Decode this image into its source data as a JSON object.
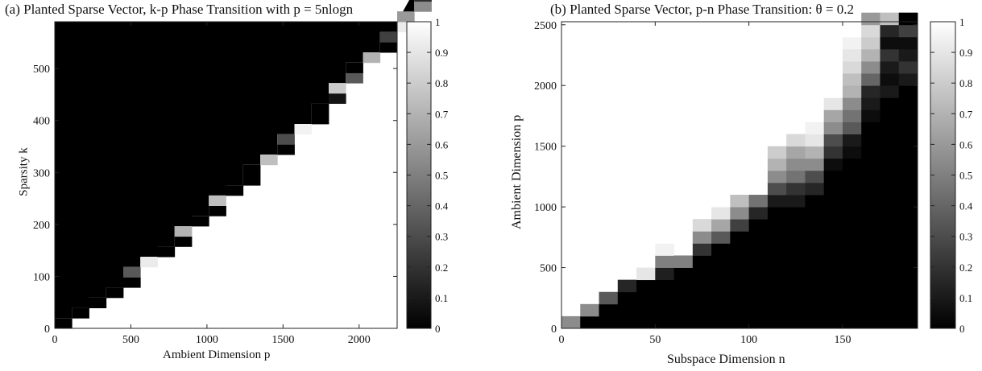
{
  "chart_data": [
    {
      "type": "heatmap",
      "title": "(a) Planted Sparse Vector, k-p Phase Transition with  p = 5nlogn",
      "xlabel": "Ambient Dimension p",
      "ylabel": "Sparsity k",
      "xlim": [
        0,
        2250
      ],
      "ylim": [
        0,
        590
      ],
      "xticks": [
        0,
        500,
        1000,
        1500,
        2000
      ],
      "yticks": [
        0,
        100,
        200,
        300,
        400,
        500
      ],
      "x_step": 112.5,
      "y_step": 19.666,
      "colorbar_ticks": [
        0,
        0.1,
        0.2,
        0.3,
        0.4,
        0.5,
        0.6,
        0.7,
        0.8,
        0.9,
        1
      ],
      "colormap": "gray",
      "boundary": [
        {
          "col": 0,
          "row": 0,
          "value": 0.0
        },
        {
          "col": 1,
          "row": 1,
          "value": 0.0
        },
        {
          "col": 2,
          "row": 2,
          "value": 0.0
        },
        {
          "col": 3,
          "row": 3,
          "value": 0.0
        },
        {
          "col": 4,
          "row": 4,
          "value": 0.0
        },
        {
          "col": 4,
          "row": 5,
          "value": 0.35
        },
        {
          "col": 5,
          "row": 6,
          "value": 0.92
        },
        {
          "col": 6,
          "row": 7,
          "value": 0.0
        },
        {
          "col": 7,
          "row": 8,
          "value": 0.0
        },
        {
          "col": 7,
          "row": 9,
          "value": 0.7
        },
        {
          "col": 8,
          "row": 10,
          "value": 0.0
        },
        {
          "col": 9,
          "row": 11,
          "value": 0.0
        },
        {
          "col": 9,
          "row": 12,
          "value": 0.75
        },
        {
          "col": 10,
          "row": 13,
          "value": 0.0
        },
        {
          "col": 11,
          "row": 14,
          "value": 0.0
        },
        {
          "col": 11,
          "row": 15,
          "value": 0.0
        },
        {
          "col": 12,
          "row": 16,
          "value": 0.75
        },
        {
          "col": 13,
          "row": 17,
          "value": 0.0
        },
        {
          "col": 13,
          "row": 18,
          "value": 0.3
        },
        {
          "col": 14,
          "row": 19,
          "value": 0.95
        },
        {
          "col": 15,
          "row": 20,
          "value": 0.0
        },
        {
          "col": 15,
          "row": 21,
          "value": 0.0
        },
        {
          "col": 16,
          "row": 22,
          "value": 0.08
        },
        {
          "col": 16,
          "row": 23,
          "value": 0.8
        },
        {
          "col": 17,
          "row": 24,
          "value": 0.35
        },
        {
          "col": 17,
          "row": 25,
          "value": 0.0
        },
        {
          "col": 18,
          "row": 26,
          "value": 0.7
        },
        {
          "col": 19,
          "row": 27,
          "value": 0.0
        },
        {
          "col": 19,
          "row": 28,
          "value": 0.25
        },
        {
          "col": 20,
          "row": 29,
          "value": 0.92
        },
        {
          "col": 20,
          "row": 30,
          "value": 0.6
        },
        {
          "col": 21,
          "row": 31,
          "value": 0.55
        },
        {
          "col": 21,
          "row": 32,
          "value": 0.18
        },
        {
          "col": 21,
          "row": 33,
          "value": 0.0
        },
        {
          "col": 22,
          "row": 33,
          "value": 0.85
        },
        {
          "col": 22,
          "row": 34,
          "value": 0.15
        },
        {
          "col": 22,
          "row": 35,
          "value": 0.4
        }
      ]
    },
    {
      "type": "heatmap",
      "title": "(b) Planted Sparse Vector, p-n Phase Transition: θ = 0.2",
      "xlabel": "Subspace Dimension n",
      "ylabel": "Ambient Dimension p",
      "xlim": [
        0,
        190
      ],
      "ylim": [
        0,
        2525
      ],
      "xticks": [
        0,
        50,
        100,
        150
      ],
      "yticks": [
        0,
        500,
        1000,
        1500,
        2000,
        2500
      ],
      "x_step": 10,
      "y_step": 100,
      "colorbar_ticks": [
        0,
        0.1,
        0.2,
        0.3,
        0.4,
        0.5,
        0.6,
        0.7,
        0.8,
        0.9,
        1
      ],
      "colormap": "gray",
      "columns": [
        {
          "col": 0,
          "start": 0,
          "end": 0,
          "values": [
            0.55
          ]
        },
        {
          "col": 1,
          "start": 1,
          "end": 1,
          "values": [
            0.55
          ]
        },
        {
          "col": 2,
          "start": 2,
          "end": 2,
          "values": [
            0.35
          ]
        },
        {
          "col": 3,
          "start": 3,
          "end": 3,
          "values": [
            0.15
          ]
        },
        {
          "col": 4,
          "start": 4,
          "end": 4,
          "values": [
            0.9
          ]
        },
        {
          "col": 5,
          "start": 4,
          "end": 7,
          "values": [
            0.12,
            0.5,
            0.95,
            1
          ]
        },
        {
          "col": 6,
          "start": 5,
          "end": 5,
          "values": [
            0.5
          ]
        },
        {
          "col": 7,
          "start": 6,
          "end": 8,
          "values": [
            0.2,
            0.55,
            0.85
          ]
        },
        {
          "col": 8,
          "start": 7,
          "end": 10,
          "values": [
            0.35,
            0.65,
            0.9,
            1
          ]
        },
        {
          "col": 9,
          "start": 8,
          "end": 10,
          "values": [
            0.25,
            0.55,
            0.75
          ]
        },
        {
          "col": 10,
          "start": 9,
          "end": 10,
          "values": [
            0.15,
            0.45
          ]
        },
        {
          "col": 11,
          "start": 10,
          "end": 14,
          "values": [
            0.1,
            0.3,
            0.55,
            0.7,
            0.8
          ]
        },
        {
          "col": 12,
          "start": 10,
          "end": 15,
          "values": [
            0.1,
            0.2,
            0.45,
            0.55,
            0.65,
            0.85
          ]
        },
        {
          "col": 13,
          "start": 11,
          "end": 17,
          "values": [
            0.15,
            0.3,
            0.55,
            0.7,
            0.9,
            0.95,
            1
          ]
        },
        {
          "col": 14,
          "start": 13,
          "end": 19,
          "values": [
            0.05,
            0.2,
            0.3,
            0.55,
            0.65,
            0.9,
            1
          ]
        },
        {
          "col": 15,
          "start": 14,
          "end": 24,
          "values": [
            0.05,
            0.1,
            0.35,
            0.45,
            0.55,
            0.7,
            0.75,
            0.85,
            0.9,
            0.95,
            1
          ]
        },
        {
          "col": 16,
          "start": 17,
          "end": 25,
          "values": [
            0.05,
            0.1,
            0.15,
            0.4,
            0.55,
            0.7,
            0.8,
            0.85,
            0.6
          ]
        },
        {
          "col": 17,
          "start": 19,
          "end": 25,
          "values": [
            0.1,
            0.05,
            0.1,
            0.2,
            0.05,
            0.15,
            0.75
          ]
        },
        {
          "col": 18,
          "start": 20,
          "end": 25,
          "values": [
            0.1,
            0.2,
            0.1,
            0.05,
            0.25,
            0.0
          ]
        }
      ]
    }
  ]
}
